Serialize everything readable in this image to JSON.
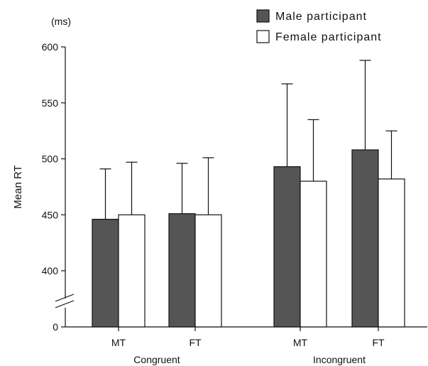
{
  "chart_data": {
    "type": "bar",
    "ylabel": "Mean RT",
    "unit": "(ms)",
    "y_ticks": [
      "0",
      "400",
      "450",
      "500",
      "550",
      "600"
    ],
    "ylim_broken": [
      400,
      600
    ],
    "axis_break": true,
    "groups": [
      {
        "label": "Congruent",
        "categories": [
          "MT",
          "FT"
        ]
      },
      {
        "label": "Incongruent",
        "categories": [
          "MT",
          "FT"
        ]
      }
    ],
    "categories": [
      "MT",
      "FT",
      "MT",
      "FT"
    ],
    "series": [
      {
        "name": "Male participant",
        "color": "#555555",
        "values": [
          446,
          451,
          493,
          508
        ],
        "error": [
          45,
          45,
          74,
          80
        ]
      },
      {
        "name": "Female participant",
        "color": "#ffffff",
        "values": [
          450,
          450,
          480,
          482
        ],
        "error": [
          47,
          51,
          55,
          43
        ]
      }
    ],
    "legend_placement": "top-right",
    "grid": false
  }
}
